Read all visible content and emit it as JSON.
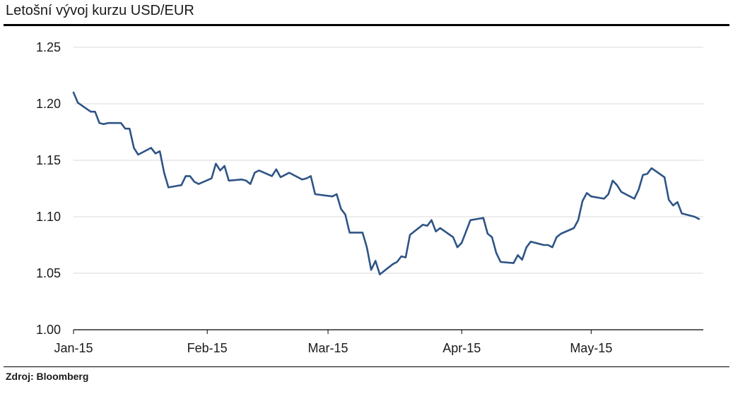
{
  "title": "Letošní vývoj kurzu USD/EUR",
  "source": "Zdroj: Bloomberg",
  "colors": {
    "line": "#2e5486",
    "grid": "#d9d9d9",
    "axis": "#000000"
  },
  "chart_data": {
    "type": "line",
    "title": "Letošní vývoj kurzu USD/EUR",
    "xlabel": "",
    "ylabel": "",
    "ylim": [
      1.0,
      1.25
    ],
    "xlim": [
      "2015-01-01",
      "2015-05-27"
    ],
    "yticks": [
      1.0,
      1.05,
      1.1,
      1.15,
      1.2,
      1.25
    ],
    "ytick_labels": [
      "1.00",
      "1.05",
      "1.10",
      "1.15",
      "1.20",
      "1.25"
    ],
    "xticks": [
      {
        "date": "2015-01-01",
        "label": "Jan-15"
      },
      {
        "date": "2015-02-01",
        "label": "Feb-15"
      },
      {
        "date": "2015-03-01",
        "label": "Mar-15"
      },
      {
        "date": "2015-04-01",
        "label": "Apr-15"
      },
      {
        "date": "2015-05-01",
        "label": "May-15"
      }
    ],
    "grid": true,
    "series": [
      {
        "name": "",
        "points": [
          [
            "2015-01-01",
            1.21
          ],
          [
            "2015-01-02",
            1.201
          ],
          [
            "2015-01-05",
            1.193
          ],
          [
            "2015-01-06",
            1.193
          ],
          [
            "2015-01-07",
            1.183
          ],
          [
            "2015-01-08",
            1.182
          ],
          [
            "2015-01-09",
            1.183
          ],
          [
            "2015-01-12",
            1.183
          ],
          [
            "2015-01-13",
            1.178
          ],
          [
            "2015-01-14",
            1.178
          ],
          [
            "2015-01-15",
            1.161
          ],
          [
            "2015-01-16",
            1.155
          ],
          [
            "2015-01-19",
            1.161
          ],
          [
            "2015-01-20",
            1.156
          ],
          [
            "2015-01-21",
            1.158
          ],
          [
            "2015-01-22",
            1.139
          ],
          [
            "2015-01-23",
            1.126
          ],
          [
            "2015-01-26",
            1.128
          ],
          [
            "2015-01-27",
            1.136
          ],
          [
            "2015-01-28",
            1.136
          ],
          [
            "2015-01-29",
            1.131
          ],
          [
            "2015-01-30",
            1.129
          ],
          [
            "2015-02-02",
            1.134
          ],
          [
            "2015-02-03",
            1.147
          ],
          [
            "2015-02-04",
            1.141
          ],
          [
            "2015-02-05",
            1.145
          ],
          [
            "2015-02-06",
            1.132
          ],
          [
            "2015-02-09",
            1.133
          ],
          [
            "2015-02-10",
            1.132
          ],
          [
            "2015-02-11",
            1.129
          ],
          [
            "2015-02-12",
            1.139
          ],
          [
            "2015-02-13",
            1.141
          ],
          [
            "2015-02-16",
            1.136
          ],
          [
            "2015-02-17",
            1.142
          ],
          [
            "2015-02-18",
            1.135
          ],
          [
            "2015-02-19",
            1.137
          ],
          [
            "2015-02-20",
            1.139
          ],
          [
            "2015-02-23",
            1.133
          ],
          [
            "2015-02-24",
            1.134
          ],
          [
            "2015-02-25",
            1.136
          ],
          [
            "2015-02-26",
            1.12
          ],
          [
            "2015-03-02",
            1.118
          ],
          [
            "2015-03-03",
            1.12
          ],
          [
            "2015-03-04",
            1.107
          ],
          [
            "2015-03-05",
            1.102
          ],
          [
            "2015-03-06",
            1.086
          ],
          [
            "2015-03-09",
            1.086
          ],
          [
            "2015-03-10",
            1.073
          ],
          [
            "2015-03-11",
            1.053
          ],
          [
            "2015-03-12",
            1.061
          ],
          [
            "2015-03-13",
            1.049
          ],
          [
            "2015-03-16",
            1.058
          ],
          [
            "2015-03-17",
            1.06
          ],
          [
            "2015-03-18",
            1.065
          ],
          [
            "2015-03-19",
            1.064
          ],
          [
            "2015-03-20",
            1.084
          ],
          [
            "2015-03-23",
            1.093
          ],
          [
            "2015-03-24",
            1.092
          ],
          [
            "2015-03-25",
            1.097
          ],
          [
            "2015-03-26",
            1.087
          ],
          [
            "2015-03-27",
            1.09
          ],
          [
            "2015-03-30",
            1.082
          ],
          [
            "2015-03-31",
            1.073
          ],
          [
            "2015-04-01",
            1.077
          ],
          [
            "2015-04-03",
            1.097
          ],
          [
            "2015-04-06",
            1.099
          ],
          [
            "2015-04-07",
            1.085
          ],
          [
            "2015-04-08",
            1.082
          ],
          [
            "2015-04-09",
            1.068
          ],
          [
            "2015-04-10",
            1.06
          ],
          [
            "2015-04-13",
            1.059
          ],
          [
            "2015-04-14",
            1.066
          ],
          [
            "2015-04-15",
            1.062
          ],
          [
            "2015-04-16",
            1.073
          ],
          [
            "2015-04-17",
            1.078
          ],
          [
            "2015-04-20",
            1.075
          ],
          [
            "2015-04-21",
            1.075
          ],
          [
            "2015-04-22",
            1.073
          ],
          [
            "2015-04-23",
            1.082
          ],
          [
            "2015-04-24",
            1.085
          ],
          [
            "2015-04-27",
            1.09
          ],
          [
            "2015-04-28",
            1.097
          ],
          [
            "2015-04-29",
            1.114
          ],
          [
            "2015-04-30",
            1.121
          ],
          [
            "2015-05-01",
            1.118
          ],
          [
            "2015-05-04",
            1.116
          ],
          [
            "2015-05-05",
            1.12
          ],
          [
            "2015-05-06",
            1.132
          ],
          [
            "2015-05-07",
            1.128
          ],
          [
            "2015-05-08",
            1.122
          ],
          [
            "2015-05-11",
            1.116
          ],
          [
            "2015-05-12",
            1.124
          ],
          [
            "2015-05-13",
            1.137
          ],
          [
            "2015-05-14",
            1.138
          ],
          [
            "2015-05-15",
            1.143
          ],
          [
            "2015-05-18",
            1.135
          ],
          [
            "2015-05-19",
            1.115
          ],
          [
            "2015-05-20",
            1.11
          ],
          [
            "2015-05-21",
            1.113
          ],
          [
            "2015-05-22",
            1.103
          ],
          [
            "2015-05-25",
            1.1
          ],
          [
            "2015-05-26",
            1.098
          ]
        ]
      }
    ]
  }
}
